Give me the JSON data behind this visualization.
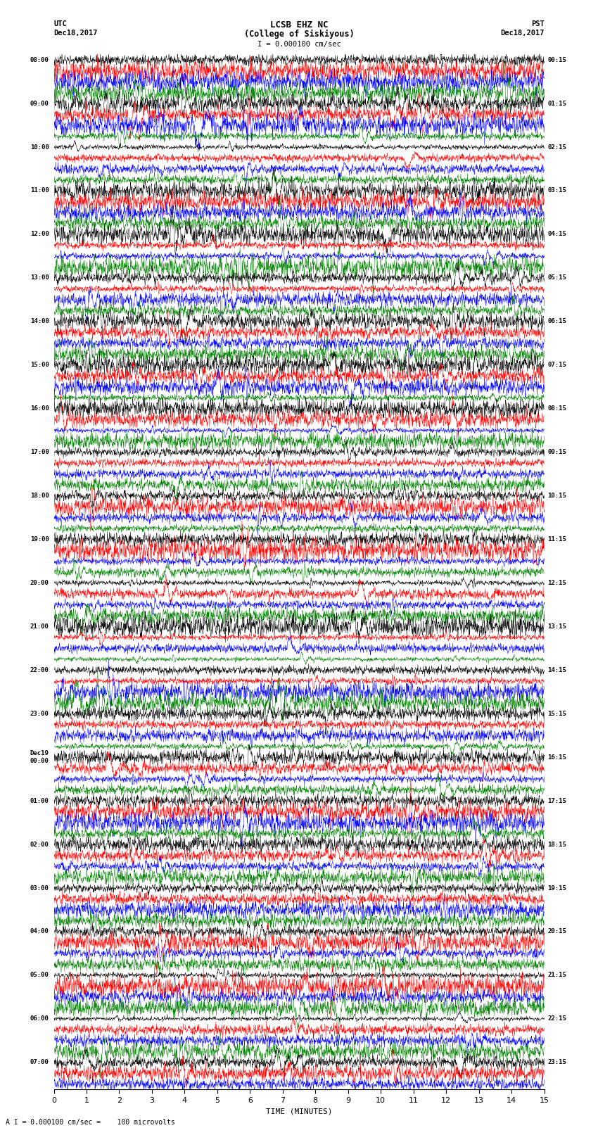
{
  "title_line1": "LCSB EHZ NC",
  "title_line2": "(College of Siskiyous)",
  "title_line3": "I = 0.000100 cm/sec",
  "left_header_top": "UTC",
  "left_header_bot": "Dec18,2017",
  "right_header_top": "PST",
  "right_header_bot": "Dec18,2017",
  "xlabel": "TIME (MINUTES)",
  "footer": "A I = 0.000100 cm/sec =    100 microvolts",
  "utc_labels": [
    "08:00",
    "",
    "",
    "",
    "09:00",
    "",
    "",
    "",
    "10:00",
    "",
    "",
    "",
    "11:00",
    "",
    "",
    "",
    "12:00",
    "",
    "",
    "",
    "13:00",
    "",
    "",
    "",
    "14:00",
    "",
    "",
    "",
    "15:00",
    "",
    "",
    "",
    "16:00",
    "",
    "",
    "",
    "17:00",
    "",
    "",
    "",
    "18:00",
    "",
    "",
    "",
    "19:00",
    "",
    "",
    "",
    "20:00",
    "",
    "",
    "",
    "21:00",
    "",
    "",
    "",
    "22:00",
    "",
    "",
    "",
    "23:00",
    "",
    "",
    "",
    "Dec19\n00:00",
    "",
    "",
    "",
    "01:00",
    "",
    "",
    "",
    "02:00",
    "",
    "",
    "",
    "03:00",
    "",
    "",
    "",
    "04:00",
    "",
    "",
    "",
    "05:00",
    "",
    "",
    "",
    "06:00",
    "",
    "",
    "",
    "07:00",
    "",
    ""
  ],
  "pst_labels": [
    "00:15",
    "",
    "",
    "",
    "01:15",
    "",
    "",
    "",
    "02:15",
    "",
    "",
    "",
    "03:15",
    "",
    "",
    "",
    "04:15",
    "",
    "",
    "",
    "05:15",
    "",
    "",
    "",
    "06:15",
    "",
    "",
    "",
    "07:15",
    "",
    "",
    "",
    "08:15",
    "",
    "",
    "",
    "09:15",
    "",
    "",
    "",
    "10:15",
    "",
    "",
    "",
    "11:15",
    "",
    "",
    "",
    "12:15",
    "",
    "",
    "",
    "13:15",
    "",
    "",
    "",
    "14:15",
    "",
    "",
    "",
    "15:15",
    "",
    "",
    "",
    "16:15",
    "",
    "",
    "",
    "17:15",
    "",
    "",
    "",
    "18:15",
    "",
    "",
    "",
    "19:15",
    "",
    "",
    "",
    "20:15",
    "",
    "",
    "",
    "21:15",
    "",
    "",
    "",
    "22:15",
    "",
    "",
    "",
    "23:15",
    "",
    ""
  ],
  "trace_colors": [
    "black",
    "red",
    "blue",
    "green"
  ],
  "n_rows": 95,
  "n_points": 2000,
  "xmin": 0,
  "xmax": 15,
  "background_color": "white",
  "seed": 42
}
